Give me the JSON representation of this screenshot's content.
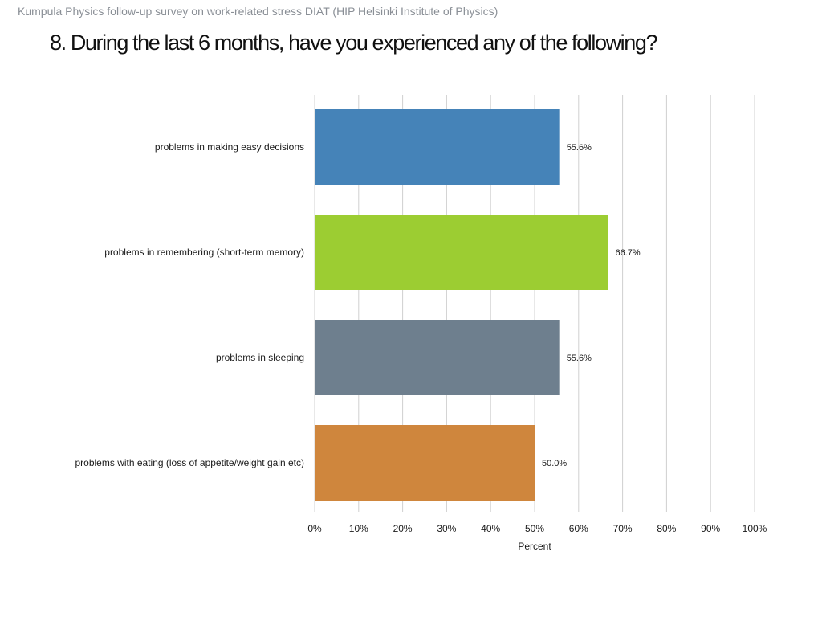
{
  "header": {
    "subtitle": "Kumpula Physics follow-up survey on work-related stress DIAT (HIP  Helsinki Institute of Physics)"
  },
  "chart_data": {
    "type": "bar",
    "orientation": "horizontal",
    "title": "8. During the last 6 months, have you experienced any of the following?",
    "categories": [
      "problems in making easy decisions",
      "problems in remembering (short-term memory)",
      "problems in sleeping",
      "problems with eating (loss of appetite/weight gain etc)"
    ],
    "values": [
      55.6,
      66.7,
      55.6,
      50.0
    ],
    "value_labels": [
      "55.6%",
      "66.7%",
      "55.6%",
      "50.0%"
    ],
    "colors": [
      "#4583b8",
      "#9ccd32",
      "#6e7f8e",
      "#cf863d"
    ],
    "xlim": [
      0,
      100
    ],
    "x_ticks": [
      0,
      10,
      20,
      30,
      40,
      50,
      60,
      70,
      80,
      90,
      100
    ],
    "x_tick_labels": [
      "0%",
      "10%",
      "20%",
      "30%",
      "40%",
      "50%",
      "60%",
      "70%",
      "80%",
      "90%",
      "100%"
    ],
    "xlabel": "Percent",
    "ylabel": "",
    "grid": true,
    "grid_color": "#d0d0d0"
  }
}
